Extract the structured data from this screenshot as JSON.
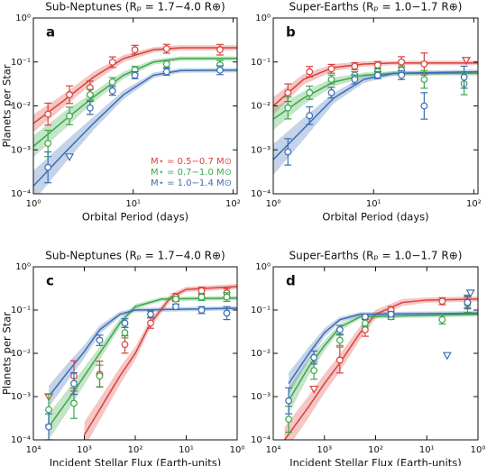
{
  "chart_data": [
    {
      "type": "scatter",
      "label": "a",
      "title": "Sub-Neptunes (Rₚ = 1.7−4.0 R⊕)",
      "x_label": "Orbital Period (days)",
      "y_label": "Planets per Star",
      "log_x": true,
      "log_y": true,
      "xlim": [
        1,
        110
      ],
      "ylim": [
        0.0001,
        1
      ],
      "xticks": [
        {
          "value": 1,
          "label": "10⁰"
        },
        {
          "value": 10,
          "label": "10¹"
        },
        {
          "value": 100,
          "label": "10²"
        }
      ],
      "yticks": [
        {
          "value": 1,
          "label": "10⁰"
        },
        {
          "value": 0.1,
          "label": "10⁻¹"
        },
        {
          "value": 0.01,
          "label": "10⁻²"
        },
        {
          "value": 0.001,
          "label": "10⁻³"
        },
        {
          "value": 0.0001,
          "label": "10⁻⁴"
        }
      ],
      "legend": "lower right",
      "series": [
        {
          "name": "M⋆ = 0.5−0.7 M⊙",
          "color": "#d9413b",
          "x": [
            1.4,
            2.3,
            3.7,
            6.2,
            10.4,
            21.6,
            74
          ],
          "values": [
            0.0065,
            0.018,
            0.026,
            0.099,
            0.19,
            0.2,
            0.19
          ],
          "errors": [
            0.25,
            0.2,
            0.15,
            0.12,
            0.1,
            0.1,
            0.12
          ],
          "fit": {
            "x": [
              1,
              2,
              4,
              8,
              16,
              30,
              110
            ],
            "values": [
              0.004,
              0.013,
              0.045,
              0.12,
              0.19,
              0.21,
              0.21
            ],
            "band": [
              0.2,
              0.15,
              0.12,
              0.08,
              0.06,
              0.06,
              0.06
            ]
          }
        },
        {
          "name": "M⋆ = 0.7−1.0 M⊙",
          "color": "#3aa84a",
          "x": [
            1.4,
            2.3,
            3.7,
            6.2,
            10.4,
            21.6,
            74
          ],
          "values": [
            0.0014,
            0.0059,
            0.018,
            0.035,
            0.066,
            0.09,
            0.086
          ],
          "errors": [
            0.3,
            0.2,
            0.12,
            0.1,
            0.08,
            0.08,
            0.1
          ],
          "fit": {
            "x": [
              1,
              2,
              4,
              8,
              16,
              30,
              110
            ],
            "values": [
              0.0012,
              0.0045,
              0.016,
              0.05,
              0.1,
              0.12,
              0.12
            ],
            "band": [
              0.25,
              0.2,
              0.12,
              0.08,
              0.06,
              0.05,
              0.05
            ]
          }
        },
        {
          "name": "M⋆ = 1.0−1.4 M⊙",
          "color": "#3b6cb4",
          "x": [
            1.4,
            3.7,
            6.2,
            10.4,
            21.6,
            74
          ],
          "values": [
            0.0004,
            0.009,
            0.022,
            0.05,
            0.06,
            0.065
          ],
          "errors": [
            0.35,
            0.15,
            0.1,
            0.08,
            0.08,
            0.1
          ],
          "upper_limits": {
            "x": [
              2.3
            ],
            "values": [
              0.0007
            ]
          },
          "fit": {
            "x": [
              1,
              2,
              4,
              8,
              16,
              30,
              110
            ],
            "values": [
              0.00015,
              0.0008,
              0.004,
              0.018,
              0.05,
              0.064,
              0.065
            ],
            "band": [
              0.35,
              0.25,
              0.15,
              0.1,
              0.06,
              0.05,
              0.05
            ]
          }
        }
      ]
    },
    {
      "type": "scatter",
      "label": "b",
      "title": "Super-Earths (Rₚ = 1.0−1.7 R⊕)",
      "x_label": "Orbital Period (days)",
      "log_x": true,
      "log_y": true,
      "xlim": [
        1,
        110
      ],
      "ylim": [
        0.0001,
        1
      ],
      "xticks": [
        {
          "value": 1,
          "label": "10⁰"
        },
        {
          "value": 10,
          "label": "10¹"
        },
        {
          "value": 100,
          "label": "10²"
        }
      ],
      "yticks": [
        {
          "value": 1,
          "label": "10⁰"
        },
        {
          "value": 0.1,
          "label": "10⁻¹"
        },
        {
          "value": 0.01,
          "label": "10⁻²"
        },
        {
          "value": 0.001,
          "label": "10⁻³"
        },
        {
          "value": 0.0001,
          "label": "10⁻⁴"
        }
      ],
      "series": [
        {
          "color": "#d9413b",
          "x": [
            1.4,
            2.3,
            3.8,
            6.5,
            11,
            19,
            32
          ],
          "values": [
            0.02,
            0.06,
            0.07,
            0.08,
            0.085,
            0.1,
            0.09
          ],
          "errors": [
            0.2,
            0.12,
            0.1,
            0.08,
            0.08,
            0.12,
            0.25
          ],
          "upper_limits": {
            "x": [
              84
            ],
            "values": [
              0.11
            ]
          },
          "fit": {
            "x": [
              1,
              2,
              4,
              8,
              16,
              110
            ],
            "values": [
              0.01,
              0.04,
              0.075,
              0.09,
              0.095,
              0.095
            ],
            "band": [
              0.2,
              0.12,
              0.08,
              0.06,
              0.05,
              0.05
            ]
          }
        },
        {
          "color": "#3aa84a",
          "x": [
            1.4,
            2.3,
            3.8,
            6.5,
            11,
            19,
            32,
            80
          ],
          "values": [
            0.009,
            0.02,
            0.04,
            0.05,
            0.06,
            0.065,
            0.04,
            0.032
          ],
          "errors": [
            0.25,
            0.15,
            0.1,
            0.08,
            0.08,
            0.1,
            0.2,
            0.25
          ],
          "fit": {
            "x": [
              1,
              2,
              4,
              8,
              16,
              110
            ],
            "values": [
              0.005,
              0.015,
              0.035,
              0.05,
              0.055,
              0.055
            ],
            "band": [
              0.25,
              0.15,
              0.1,
              0.06,
              0.05,
              0.05
            ]
          }
        },
        {
          "color": "#3b6cb4",
          "x": [
            1.4,
            2.3,
            3.8,
            6.5,
            11,
            19,
            32,
            80
          ],
          "values": [
            0.0009,
            0.006,
            0.02,
            0.04,
            0.05,
            0.05,
            0.01,
            0.045
          ],
          "errors": [
            0.3,
            0.2,
            0.12,
            0.1,
            0.08,
            0.1,
            0.3,
            0.25
          ],
          "fit": {
            "x": [
              1,
              2,
              4,
              8,
              16,
              110
            ],
            "values": [
              0.0006,
              0.003,
              0.015,
              0.04,
              0.055,
              0.06
            ],
            "band": [
              0.35,
              0.25,
              0.12,
              0.08,
              0.05,
              0.05
            ]
          }
        }
      ]
    },
    {
      "type": "scatter",
      "label": "c",
      "title": "Sub-Neptunes (Rₚ = 1.7−4.0 R⊕)",
      "x_label": "Incident Stellar Flux (Earth-units)",
      "y_label": "Planets per Star",
      "log_x": true,
      "log_y": true,
      "xlim": [
        10000,
        1
      ],
      "ylim": [
        0.0001,
        1
      ],
      "xticks": [
        {
          "value": 10000,
          "label": "10⁴"
        },
        {
          "value": 1000,
          "label": "10³"
        },
        {
          "value": 100,
          "label": "10²"
        },
        {
          "value": 10,
          "label": "10¹"
        },
        {
          "value": 1,
          "label": "10⁰"
        }
      ],
      "yticks": [
        {
          "value": 1,
          "label": "10⁰"
        },
        {
          "value": 0.1,
          "label": "10⁻¹"
        },
        {
          "value": 0.01,
          "label": "10⁻²"
        },
        {
          "value": 0.001,
          "label": "10⁻³"
        },
        {
          "value": 0.0001,
          "label": "10⁻⁴"
        }
      ],
      "series": [
        {
          "color": "#d9413b",
          "x": [
            1600,
            500,
            160,
            50,
            16,
            5,
            1.6
          ],
          "values": [
            0.003,
            0.0033,
            0.016,
            0.05,
            0.2,
            0.28,
            0.25
          ],
          "errors": [
            0.35,
            0.3,
            0.2,
            0.12,
            0.08,
            0.08,
            0.1
          ],
          "upper_limits": {
            "x": [
              5000
            ],
            "values": [
              0.001
            ]
          },
          "fit": {
            "x": [
              1000,
              500,
              200,
              100,
              50,
              20,
              10,
              1
            ],
            "values": [
              0.00013,
              0.0005,
              0.003,
              0.01,
              0.05,
              0.2,
              0.3,
              0.35
            ],
            "band": [
              0.3,
              0.25,
              0.2,
              0.15,
              0.1,
              0.08,
              0.06,
              0.06
            ]
          }
        },
        {
          "color": "#3aa84a",
          "x": [
            5000,
            1600,
            500,
            160,
            50,
            16,
            5,
            1.6
          ],
          "values": [
            0.0005,
            0.0007,
            0.003,
            0.03,
            0.08,
            0.18,
            0.2,
            0.2
          ],
          "errors": [
            0.35,
            0.35,
            0.25,
            0.12,
            0.08,
            0.06,
            0.08,
            0.1
          ],
          "fit": {
            "x": [
              5000,
              2000,
              1000,
              500,
              200,
              100,
              30,
              1
            ],
            "values": [
              0.0002,
              0.0009,
              0.003,
              0.01,
              0.05,
              0.12,
              0.18,
              0.19
            ],
            "band": [
              0.3,
              0.25,
              0.2,
              0.15,
              0.1,
              0.06,
              0.05,
              0.05
            ]
          }
        },
        {
          "color": "#3b6cb4",
          "x": [
            5000,
            1600,
            500,
            160,
            50,
            16,
            5,
            1.6
          ],
          "values": [
            0.0002,
            0.002,
            0.02,
            0.05,
            0.08,
            0.12,
            0.1,
            0.085
          ],
          "errors": [
            0.3,
            0.25,
            0.12,
            0.1,
            0.08,
            0.06,
            0.08,
            0.15
          ],
          "fit": {
            "x": [
              5000,
              2000,
              1000,
              500,
              200,
              100,
              1
            ],
            "values": [
              0.001,
              0.004,
              0.011,
              0.035,
              0.08,
              0.1,
              0.11
            ],
            "band": [
              0.25,
              0.2,
              0.15,
              0.1,
              0.06,
              0.05,
              0.05
            ]
          }
        }
      ]
    },
    {
      "type": "scatter",
      "label": "d",
      "title": "Super-Earths (Rₚ = 1.0−1.7 R⊕)",
      "x_label": "Incident Stellar Flux (Earth-units)",
      "log_x": true,
      "log_y": true,
      "xlim": [
        10000,
        1
      ],
      "ylim": [
        0.0001,
        1
      ],
      "xticks": [
        {
          "value": 10000,
          "label": "10⁴"
        },
        {
          "value": 1000,
          "label": "10³"
        },
        {
          "value": 100,
          "label": "10²"
        },
        {
          "value": 10,
          "label": "10¹"
        },
        {
          "value": 1,
          "label": "10⁰"
        }
      ],
      "yticks": [
        {
          "value": 1,
          "label": "10⁰"
        },
        {
          "value": 0.1,
          "label": "10⁻¹"
        },
        {
          "value": 0.01,
          "label": "10⁻²"
        },
        {
          "value": 0.001,
          "label": "10⁻³"
        },
        {
          "value": 0.0001,
          "label": "10⁻⁴"
        }
      ],
      "series": [
        {
          "color": "#d9413b",
          "x": [
            500,
            160,
            50,
            5,
            1.6
          ],
          "values": [
            0.007,
            0.035,
            0.1,
            0.16,
            0.15
          ],
          "errors": [
            0.3,
            0.15,
            0.08,
            0.08,
            0.12
          ],
          "upper_limits": {
            "x": [
              1600
            ],
            "values": [
              0.0015
            ]
          },
          "fit": {
            "x": [
              6000,
              2000,
              1000,
              500,
              200,
              100,
              30,
              10,
              1
            ],
            "values": [
              0.0001,
              0.0006,
              0.002,
              0.006,
              0.03,
              0.08,
              0.15,
              0.17,
              0.18
            ],
            "band": [
              0.3,
              0.25,
              0.22,
              0.2,
              0.15,
              0.1,
              0.08,
              0.06,
              0.06
            ]
          }
        },
        {
          "color": "#3aa84a",
          "x": [
            5000,
            1600,
            500,
            160,
            50,
            5,
            1.6
          ],
          "values": [
            0.0003,
            0.004,
            0.02,
            0.05,
            0.07,
            0.06,
            0.14
          ],
          "errors": [
            0.3,
            0.2,
            0.12,
            0.08,
            0.06,
            0.1,
            0.2
          ],
          "fit": {
            "x": [
              5000,
              2000,
              1000,
              500,
              200,
              1
            ],
            "values": [
              0.0008,
              0.005,
              0.015,
              0.04,
              0.07,
              0.08
            ],
            "band": [
              0.3,
              0.2,
              0.12,
              0.08,
              0.05,
              0.05
            ]
          }
        },
        {
          "color": "#3b6cb4",
          "x": [
            5000,
            1600,
            500,
            160,
            50,
            1.6
          ],
          "values": [
            0.0008,
            0.008,
            0.035,
            0.07,
            0.08,
            0.15
          ],
          "errors": [
            0.3,
            0.15,
            0.1,
            0.06,
            0.06,
            0.15
          ],
          "upper_limits": {
            "x": [
              4,
              1.4
            ],
            "values": [
              0.009,
              0.25
            ]
          },
          "fit": {
            "x": [
              5000,
              2000,
              1000,
              500,
              200,
              1
            ],
            "values": [
              0.002,
              0.01,
              0.03,
              0.06,
              0.08,
              0.085
            ],
            "band": [
              0.25,
              0.15,
              0.1,
              0.06,
              0.05,
              0.05
            ]
          }
        }
      ]
    }
  ]
}
